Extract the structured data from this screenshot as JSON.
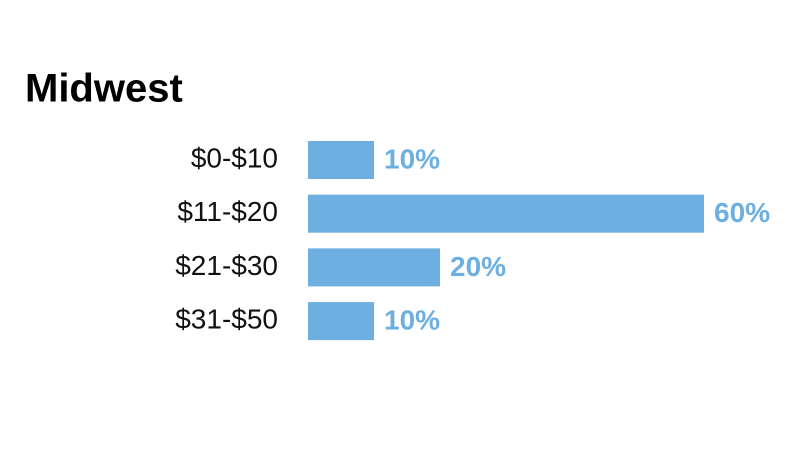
{
  "chart_data": {
    "type": "bar",
    "orientation": "horizontal",
    "title": "Midwest",
    "categories": [
      "$0-$10",
      "$11-$20",
      "$21-$30",
      "$31-$50"
    ],
    "values": [
      10,
      60,
      20,
      10
    ],
    "value_labels": [
      "10%",
      "60%",
      "20%",
      "10%"
    ],
    "color": "#6cafe0"
  }
}
